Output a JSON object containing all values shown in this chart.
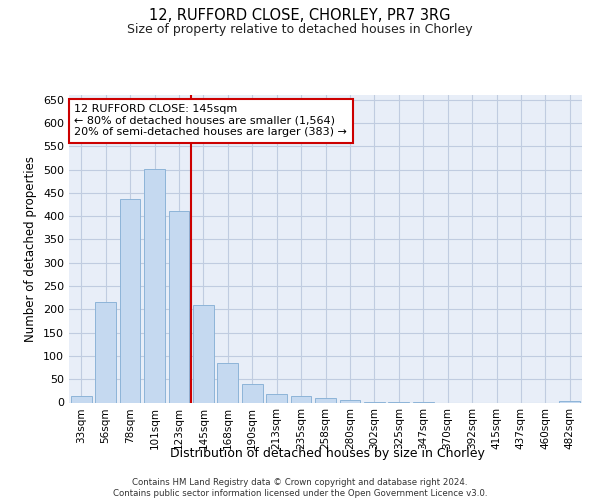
{
  "title1": "12, RUFFORD CLOSE, CHORLEY, PR7 3RG",
  "title2": "Size of property relative to detached houses in Chorley",
  "xlabel": "Distribution of detached houses by size in Chorley",
  "ylabel": "Number of detached properties",
  "footer1": "Contains HM Land Registry data © Crown copyright and database right 2024.",
  "footer2": "Contains public sector information licensed under the Open Government Licence v3.0.",
  "bar_color": "#c5d9f0",
  "bar_edge_color": "#8db4d8",
  "background_color": "#e8eef8",
  "grid_color": "#c0cce0",
  "categories": [
    "33sqm",
    "56sqm",
    "78sqm",
    "101sqm",
    "123sqm",
    "145sqm",
    "168sqm",
    "190sqm",
    "213sqm",
    "235sqm",
    "258sqm",
    "280sqm",
    "302sqm",
    "325sqm",
    "347sqm",
    "370sqm",
    "392sqm",
    "415sqm",
    "437sqm",
    "460sqm",
    "482sqm"
  ],
  "values": [
    15,
    215,
    437,
    502,
    410,
    209,
    85,
    40,
    18,
    15,
    10,
    5,
    2,
    1,
    1,
    0,
    0,
    0,
    0,
    0,
    3
  ],
  "ylim": [
    0,
    660
  ],
  "yticks": [
    0,
    50,
    100,
    150,
    200,
    250,
    300,
    350,
    400,
    450,
    500,
    550,
    600,
    650
  ],
  "property_line_x": 4.5,
  "annotation_text": "12 RUFFORD CLOSE: 145sqm\n← 80% of detached houses are smaller (1,564)\n20% of semi-detached houses are larger (383) →",
  "red_line_color": "#cc0000",
  "annotation_border_color": "#cc0000"
}
